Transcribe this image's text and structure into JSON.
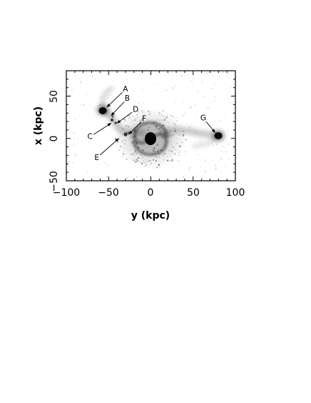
{
  "figure": {
    "xaxis": {
      "title": "y (kpc)",
      "range": [
        -100,
        100
      ],
      "tick_labels": [
        "−100",
        "−50",
        "0",
        "50",
        "100"
      ]
    },
    "yaxis": {
      "title": "x (kpc)",
      "range": [
        -50,
        80
      ],
      "tick_labels": [
        "−50",
        "0",
        "50"
      ]
    },
    "annotations": [
      {
        "label": "A",
        "text_at": [
          -30,
          58
        ],
        "points_to": [
          -52,
          37
        ]
      },
      {
        "label": "B",
        "text_at": [
          -28,
          47
        ],
        "points_to": [
          -47,
          27
        ]
      },
      {
        "label": "C",
        "text_at": [
          -72,
          2
        ],
        "points_to": [
          -47,
          18
        ]
      },
      {
        "label": "D",
        "text_at": [
          -18,
          34
        ],
        "points_to": [
          -40,
          18
        ]
      },
      {
        "label": "E",
        "text_at": [
          -64,
          -23
        ],
        "points_to": [
          -38,
          0
        ]
      },
      {
        "label": "F",
        "text_at": [
          -8,
          23
        ],
        "points_to": [
          -26,
          5
        ]
      },
      {
        "label": "G",
        "text_at": [
          62,
          24
        ],
        "points_to": [
          76,
          7
        ]
      }
    ]
  }
}
